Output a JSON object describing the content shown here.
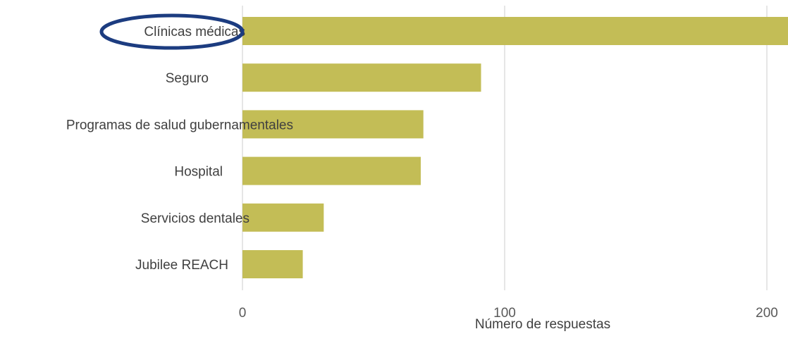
{
  "chart_data": {
    "type": "bar",
    "orientation": "horizontal",
    "categories": [
      "Clínicas médicas",
      "Seguro",
      "Programas de salud gubernamentales",
      "Hospital",
      "Servicios dentales",
      "Jubilee REACH"
    ],
    "values": [
      210,
      91,
      69,
      68,
      31,
      23
    ],
    "xlabel": "Número de respuestas",
    "ylabel": "",
    "xlim": [
      0,
      200
    ],
    "xticks": [
      "0",
      "100",
      "200"
    ],
    "grid": "vertical",
    "legend": "none",
    "highlight": "Clínicas médicas",
    "colors": {
      "bar": "#c3bd56",
      "highlight_ellipse": "#1c3c80",
      "gridline": "#d9d9d9"
    }
  }
}
